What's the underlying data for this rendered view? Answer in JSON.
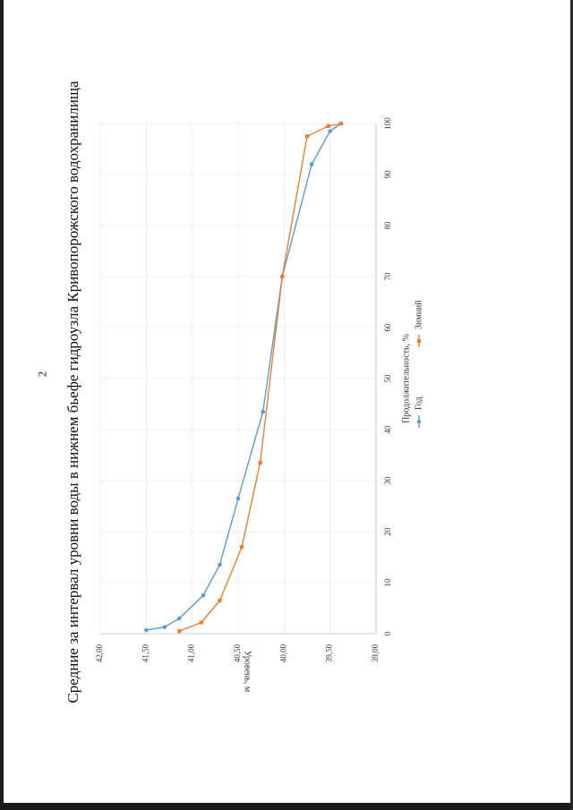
{
  "page": {
    "number": "2",
    "title": "Средние за интервал уровни воды в нижнем бьефе гидроузла Кривопорожского водохранилища"
  },
  "chart_data": {
    "type": "line",
    "title": "",
    "xlabel": "Продолжительность, %",
    "ylabel": "Уровень, м",
    "xlim": [
      0,
      100
    ],
    "ylim": [
      39.0,
      42.0
    ],
    "x_ticks": [
      "0",
      "10",
      "20",
      "30",
      "40",
      "50",
      "60",
      "70",
      "80",
      "90",
      "100"
    ],
    "y_ticks": [
      "39,00",
      "39,50",
      "40,00",
      "40,50",
      "41,00",
      "41,50",
      "42,00"
    ],
    "grid": true,
    "orientation": "rotated 90° counter-clockwise on page",
    "legend_position": "bottom",
    "series": [
      {
        "name": "Год",
        "color": "#5b9bd5",
        "points": [
          [
            0.7,
            41.5
          ],
          [
            1.3,
            41.3
          ],
          [
            3.0,
            41.14
          ],
          [
            7.5,
            40.88
          ],
          [
            13.5,
            40.7
          ],
          [
            26.5,
            40.5
          ],
          [
            43.5,
            40.23
          ],
          [
            70.0,
            40.02
          ],
          [
            92.0,
            39.7
          ],
          [
            98.5,
            39.5
          ],
          [
            100.0,
            39.38
          ]
        ]
      },
      {
        "name": "Зимний",
        "color": "#ed7d31",
        "points": [
          [
            0.5,
            41.14
          ],
          [
            2.2,
            40.9
          ],
          [
            6.5,
            40.7
          ],
          [
            17.0,
            40.46
          ],
          [
            33.5,
            40.26
          ],
          [
            70.0,
            40.02
          ],
          [
            97.5,
            39.75
          ],
          [
            99.5,
            39.52
          ],
          [
            100.0,
            39.38
          ]
        ]
      }
    ]
  }
}
